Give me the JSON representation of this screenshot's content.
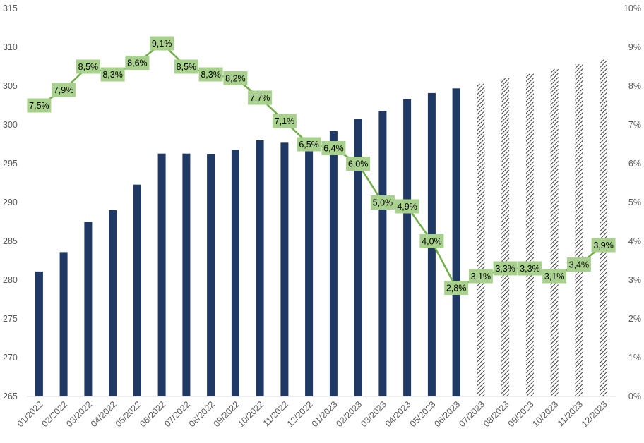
{
  "chart_data": {
    "type": "bar",
    "categories": [
      "01/2022",
      "02/2022",
      "03/2022",
      "04/2022",
      "05/2022",
      "06/2022",
      "07/2022",
      "08/2022",
      "09/2022",
      "10/2022",
      "11/2022",
      "12/2022",
      "01/2023",
      "02/2023",
      "03/2023",
      "04/2023",
      "05/2023",
      "06/2023",
      "07/2023",
      "08/2023",
      "09/2023",
      "10/2023",
      "11/2023",
      "12/2023"
    ],
    "series": [
      {
        "type": "bar",
        "axis": "left",
        "values": [
          281.1,
          283.6,
          287.5,
          289.0,
          292.3,
          296.3,
          296.3,
          296.2,
          296.8,
          298.0,
          297.7,
          296.8,
          299.2,
          300.8,
          301.8,
          303.3,
          304.1,
          304.7,
          305.3,
          306.0,
          306.6,
          307.2,
          307.8,
          308.4
        ],
        "color": "#1f3864",
        "projected_from_index": 18,
        "projected_style": "hatched"
      },
      {
        "type": "line",
        "axis": "right",
        "values": [
          7.5,
          7.9,
          8.5,
          8.3,
          8.6,
          9.1,
          8.5,
          8.3,
          8.2,
          7.7,
          7.1,
          6.5,
          6.4,
          6.0,
          5.0,
          4.9,
          4.0,
          2.8,
          3.1,
          3.3,
          3.3,
          3.1,
          3.4,
          3.9
        ],
        "labels": [
          "7,5%",
          "7,9%",
          "8,5%",
          "8,3%",
          "8,6%",
          "9,1%",
          "8,5%",
          "8,3%",
          "8,2%",
          "7,7%",
          "7,1%",
          "6,5%",
          "6,4%",
          "6,0%",
          "5,0%",
          "4,9%",
          "4,0%",
          "2,8%",
          "3,1%",
          "3,3%",
          "3,3%",
          "3,1%",
          "3,4%",
          "3,9%"
        ],
        "color": "#70ad47",
        "label_bg": "#a9d18e"
      }
    ],
    "y_left": {
      "ylim": [
        265,
        315
      ],
      "ticks": [
        "265",
        "270",
        "275",
        "280",
        "285",
        "290",
        "295",
        "300",
        "305",
        "310",
        "315"
      ]
    },
    "y_right": {
      "ylim": [
        0,
        10
      ],
      "ticks": [
        "0%",
        "1%",
        "2%",
        "3%",
        "4%",
        "5%",
        "6%",
        "7%",
        "8%",
        "9%",
        "10%"
      ]
    },
    "grid": false,
    "legend": "none"
  }
}
